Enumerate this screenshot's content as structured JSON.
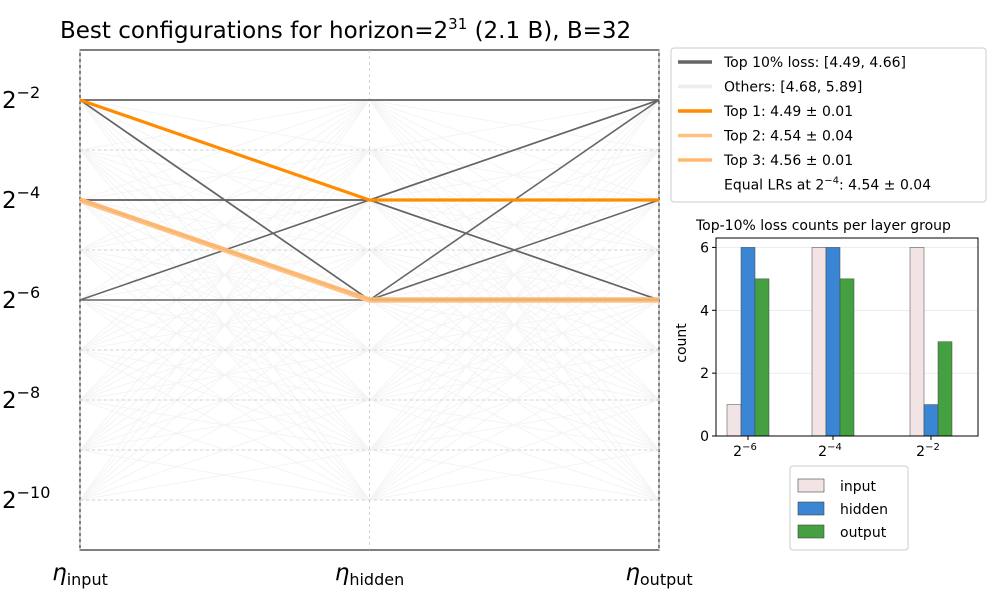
{
  "title": {
    "prefix": "Best configurations for horizon=2",
    "sup": "31",
    "suffix": " (2.1 B), B=32"
  },
  "colors": {
    "top10": "#666666",
    "others": "#cccccc",
    "top1": "#ff8c00",
    "top2": "#ffc080",
    "top3": "#ffb870",
    "input": "#f2e4e4",
    "hidden": "#3a86d4",
    "output": "#44a040"
  },
  "chart_data": [
    {
      "type": "parallel-coordinates",
      "title": "Best configurations for horizon=2^31 (2.1 B), B=32",
      "axes": [
        {
          "symbol": "η",
          "subscript": "input"
        },
        {
          "symbol": "η",
          "subscript": "hidden"
        },
        {
          "symbol": "η",
          "subscript": "output"
        }
      ],
      "y_scale": "log2",
      "y_range_exp": [
        -11,
        -1
      ],
      "y_ticks": [
        {
          "base": "2",
          "exp": "−2",
          "value": -2
        },
        {
          "base": "2",
          "exp": "−4",
          "value": -4
        },
        {
          "base": "2",
          "exp": "−6",
          "value": -6
        },
        {
          "base": "2",
          "exp": "−8",
          "value": -8
        },
        {
          "base": "2",
          "exp": "−10",
          "value": -10
        }
      ],
      "levels_exp": [
        -2,
        -3,
        -4,
        -5,
        -6,
        -7,
        -8,
        -9,
        -10
      ],
      "top10_lines": [
        [
          -2,
          -2,
          -2
        ],
        [
          -2,
          -2,
          -2
        ],
        [
          -2,
          -4,
          -2
        ],
        [
          -2,
          -6,
          -4
        ],
        [
          -2,
          -6,
          -6
        ],
        [
          -4,
          -4,
          -2
        ],
        [
          -4,
          -6,
          -2
        ],
        [
          -4,
          -4,
          -4
        ],
        [
          -4,
          -6,
          -6
        ],
        [
          -6,
          -4,
          -6
        ],
        [
          -6,
          -6,
          -6
        ],
        [
          -4,
          -4,
          -6
        ]
      ],
      "top_configs": [
        {
          "rank": "top1",
          "values_exp": [
            -2,
            -4,
            -4
          ]
        },
        {
          "rank": "top2",
          "values_exp": [
            -4,
            -6,
            -6
          ]
        },
        {
          "rank": "top3",
          "values_exp": [
            -4,
            -6,
            -6
          ]
        }
      ],
      "legend": [
        {
          "key": "top10",
          "label": "Top 10% loss: [4.49, 4.66]"
        },
        {
          "key": "others",
          "label": "Others: [4.68, 5.89]"
        },
        {
          "key": "top1",
          "label": "Top 1: 4.49 ± 0.01"
        },
        {
          "key": "top2",
          "label": "Top 2: 4.54 ± 0.04"
        },
        {
          "key": "top3",
          "label": "Top 3: 4.56 ± 0.01"
        },
        {
          "key": "equal",
          "label_prefix": "Equal LRs at 2",
          "label_sup": "−4",
          "label_suffix": ": 4.54 ± 0.04"
        }
      ]
    },
    {
      "type": "bar",
      "title": "Top-10% loss counts per layer group",
      "ylabel": "count",
      "ylim": [
        0,
        6.3
      ],
      "y_ticks": [
        "0",
        "2",
        "4",
        "6"
      ],
      "categories": [
        {
          "base": "2",
          "exp": "−6"
        },
        {
          "base": "2",
          "exp": "−4"
        },
        {
          "base": "2",
          "exp": "−2"
        }
      ],
      "series": [
        {
          "name": "input",
          "values": [
            1,
            6,
            6
          ]
        },
        {
          "name": "hidden",
          "values": [
            6,
            6,
            1
          ]
        },
        {
          "name": "output",
          "values": [
            5,
            5,
            3
          ]
        }
      ]
    }
  ]
}
